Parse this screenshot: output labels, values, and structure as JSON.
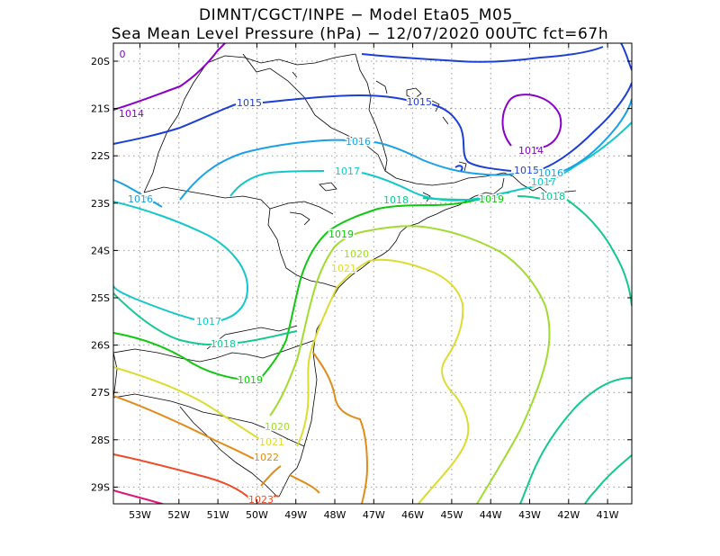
{
  "title": {
    "line1": "DIMNT/CGCT/INPE −  Model Eta05_M05_",
    "line2": "Sea Mean Level Pressure (hPa) − 12/07/2020 00UTC fct=67h"
  },
  "map": {
    "lon_labels": [
      "53W",
      "52W",
      "51W",
      "50W",
      "49W",
      "48W",
      "47W",
      "46W",
      "45W",
      "44W",
      "43W",
      "42W",
      "41W"
    ],
    "lat_labels": [
      "20S",
      "21S",
      "22S",
      "23S",
      "24S",
      "25S",
      "26S",
      "27S",
      "28S",
      "29S"
    ],
    "grid": "dotted",
    "colors": {
      "1014": "#8a00c8",
      "1015": "#1e3fd6",
      "1016": "#1aa0e6",
      "1017": "#12c8c8",
      "1018": "#12c890",
      "1019": "#10c810",
      "1020": "#a0dc30",
      "1021": "#dcdc30",
      "1022": "#e08c18",
      "1023": "#f04a28",
      "1024": "#e0147a",
      "coast": "#000000"
    },
    "contour_labels": [
      {
        "text": "0",
        "level": "1014"
      },
      {
        "text": "1014",
        "level": "1014"
      },
      {
        "text": "1014",
        "level": "1014"
      },
      {
        "text": "1015",
        "level": "1015"
      },
      {
        "text": "1015",
        "level": "1015"
      },
      {
        "text": "1015",
        "level": "1015"
      },
      {
        "text": "1016",
        "level": "1016"
      },
      {
        "text": "1016",
        "level": "1016"
      },
      {
        "text": "1016",
        "level": "1016"
      },
      {
        "text": "1017",
        "level": "1017"
      },
      {
        "text": "1017",
        "level": "1017"
      },
      {
        "text": "1017",
        "level": "1017"
      },
      {
        "text": "1018",
        "level": "1018"
      },
      {
        "text": "1018",
        "level": "1018"
      },
      {
        "text": "1018",
        "level": "1018"
      },
      {
        "text": "1019",
        "level": "1019"
      },
      {
        "text": "1019",
        "level": "1019"
      },
      {
        "text": "1019",
        "level": "1019"
      },
      {
        "text": "1020",
        "level": "1020"
      },
      {
        "text": "1020",
        "level": "1020"
      },
      {
        "text": "1021",
        "level": "1021"
      },
      {
        "text": "1021",
        "level": "1021"
      },
      {
        "text": "1022",
        "level": "1022"
      },
      {
        "text": "1023",
        "level": "1023"
      }
    ]
  }
}
